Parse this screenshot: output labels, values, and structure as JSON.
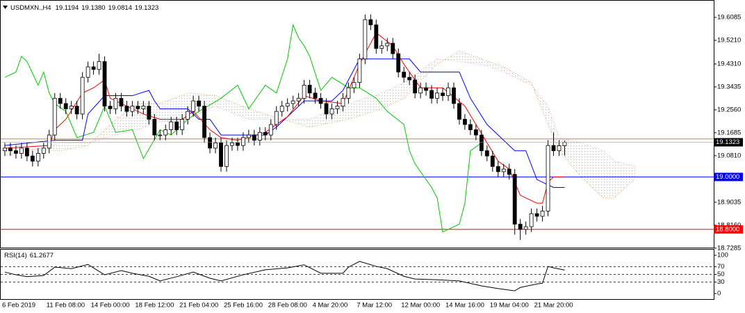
{
  "chart_data": {
    "type": "candlestick",
    "symbol": "USDMXN.,H4",
    "ohlc_value_labels": [
      "19.1194",
      "19.1380",
      "19.0814",
      "19.1323"
    ],
    "categories": [
      "6 Feb 2019",
      null,
      null,
      null,
      null,
      null,
      null,
      null,
      "11 Feb 08:00",
      null,
      null,
      null,
      null,
      null,
      null,
      null,
      "14 Feb 00:00",
      null,
      null,
      null,
      null,
      null,
      null,
      null,
      "18 Feb 12:00",
      null,
      null,
      null,
      null,
      null,
      null,
      null,
      "21 Feb 04:00",
      null,
      null,
      null,
      null,
      null,
      null,
      null,
      "25 Feb 16:00",
      null,
      null,
      null,
      null,
      null,
      null,
      null,
      "28 Feb 08:00",
      null,
      null,
      null,
      null,
      null,
      null,
      null,
      "4 Mar 20:00",
      null,
      null,
      null,
      null,
      null,
      null,
      null,
      "7 Mar 12:00",
      null,
      null,
      null,
      null,
      null,
      null,
      null,
      "12 Mar 00:00",
      null,
      null,
      null,
      null,
      null,
      null,
      null,
      "14 Mar 16:00",
      null,
      null,
      null,
      null,
      null,
      null,
      null,
      "19 Mar 04:00",
      null,
      null,
      null,
      null,
      null,
      null,
      null,
      "21 Mar 20:00",
      null,
      null,
      null,
      null,
      null
    ],
    "open": [
      19.1,
      19.11,
      19.1,
      19.09,
      19.11,
      19.08,
      19.06,
      19.09,
      19.11,
      19.16,
      19.3,
      19.28,
      19.26,
      19.27,
      19.24,
      19.38,
      19.42,
      19.41,
      19.44,
      19.27,
      19.26,
      19.3,
      19.27,
      19.25,
      19.27,
      19.26,
      19.27,
      19.22,
      19.16,
      19.16,
      19.18,
      19.21,
      19.18,
      19.22,
      19.25,
      19.29,
      19.27,
      19.15,
      19.11,
      19.13,
      19.04,
      19.12,
      19.13,
      19.12,
      19.15,
      19.16,
      19.14,
      19.17,
      19.16,
      19.2,
      19.25,
      19.27,
      19.28,
      19.29,
      19.3,
      19.35,
      19.32,
      19.3,
      19.28,
      19.24,
      19.26,
      19.27,
      19.3,
      19.34,
      19.36,
      19.45,
      19.6,
      19.58,
      19.49,
      19.5,
      19.51,
      19.47,
      19.4,
      19.38,
      19.37,
      19.32,
      19.34,
      19.33,
      19.3,
      19.32,
      19.31,
      19.34,
      19.28,
      19.22,
      19.2,
      19.18,
      19.16,
      19.1,
      19.08,
      19.04,
      19.02,
      19.03,
      19.01,
      18.82,
      18.8,
      18.81,
      18.86,
      18.85,
      18.87,
      19.12,
      19.1,
      19.1194
    ],
    "high": [
      19.13,
      19.13,
      19.12,
      19.13,
      19.13,
      19.1,
      19.11,
      19.13,
      19.18,
      19.32,
      19.32,
      19.3,
      19.29,
      19.29,
      19.4,
      19.44,
      19.44,
      19.47,
      19.46,
      19.29,
      19.32,
      19.32,
      19.29,
      19.29,
      19.29,
      19.29,
      19.29,
      19.24,
      19.18,
      19.2,
      19.23,
      19.23,
      19.24,
      19.27,
      19.31,
      19.31,
      19.29,
      19.17,
      19.15,
      19.15,
      19.14,
      19.15,
      19.15,
      19.17,
      19.18,
      19.18,
      19.19,
      19.19,
      19.22,
      19.27,
      19.29,
      19.3,
      19.31,
      19.32,
      19.37,
      19.37,
      19.34,
      19.32,
      19.3,
      19.28,
      19.29,
      19.32,
      19.36,
      19.38,
      19.47,
      19.62,
      19.62,
      19.6,
      19.52,
      19.53,
      19.53,
      19.49,
      19.42,
      19.4,
      19.39,
      19.36,
      19.36,
      19.35,
      19.34,
      19.34,
      19.36,
      19.36,
      19.3,
      19.24,
      19.22,
      19.2,
      19.18,
      19.12,
      19.1,
      19.06,
      19.05,
      19.05,
      19.03,
      18.84,
      18.83,
      18.88,
      18.88,
      18.89,
      19.14,
      19.17,
      19.14,
      19.138
    ],
    "low": [
      19.08,
      19.08,
      19.07,
      19.07,
      19.06,
      19.04,
      19.04,
      19.07,
      19.09,
      19.14,
      19.26,
      19.24,
      19.24,
      19.22,
      19.22,
      19.36,
      19.39,
      19.39,
      19.25,
      19.24,
      19.24,
      19.25,
      19.23,
      19.23,
      19.24,
      19.24,
      19.2,
      19.14,
      19.14,
      19.14,
      19.16,
      19.16,
      19.16,
      19.2,
      19.23,
      19.25,
      19.13,
      19.09,
      19.09,
      19.02,
      19.02,
      19.1,
      19.1,
      19.1,
      19.13,
      19.12,
      19.12,
      19.14,
      19.14,
      19.18,
      19.23,
      19.25,
      19.26,
      19.27,
      19.28,
      19.3,
      19.28,
      19.26,
      19.22,
      19.22,
      19.24,
      19.25,
      19.28,
      19.32,
      19.34,
      19.43,
      19.56,
      19.47,
      19.47,
      19.48,
      19.45,
      19.38,
      19.36,
      19.35,
      19.3,
      19.3,
      19.31,
      19.28,
      19.28,
      19.29,
      19.29,
      19.26,
      19.2,
      19.18,
      19.16,
      19.14,
      19.08,
      19.06,
      19.02,
      19.0,
      19.0,
      18.99,
      18.78,
      18.76,
      18.78,
      18.79,
      18.83,
      18.83,
      18.85,
      19.08,
      19.08,
      19.0814
    ],
    "close": [
      19.11,
      19.1,
      19.09,
      19.11,
      19.08,
      19.06,
      19.09,
      19.11,
      19.16,
      19.3,
      19.28,
      19.26,
      19.27,
      19.24,
      19.38,
      19.42,
      19.41,
      19.44,
      19.27,
      19.26,
      19.3,
      19.27,
      19.25,
      19.27,
      19.26,
      19.27,
      19.22,
      19.16,
      19.16,
      19.18,
      19.21,
      19.18,
      19.22,
      19.25,
      19.29,
      19.27,
      19.15,
      19.11,
      19.13,
      19.04,
      19.12,
      19.13,
      19.12,
      19.15,
      19.16,
      19.14,
      19.17,
      19.16,
      19.2,
      19.25,
      19.27,
      19.28,
      19.29,
      19.3,
      19.35,
      19.32,
      19.3,
      19.28,
      19.24,
      19.26,
      19.27,
      19.3,
      19.34,
      19.36,
      19.45,
      19.6,
      19.58,
      19.49,
      19.5,
      19.51,
      19.47,
      19.4,
      19.38,
      19.37,
      19.32,
      19.34,
      19.33,
      19.3,
      19.32,
      19.31,
      19.34,
      19.28,
      19.22,
      19.2,
      19.18,
      19.16,
      19.1,
      19.08,
      19.04,
      19.02,
      19.03,
      19.01,
      18.82,
      18.8,
      18.81,
      18.86,
      18.85,
      18.87,
      19.12,
      19.1,
      19.1194,
      19.1323
    ],
    "candle_color": "#000000",
    "bull_fill": "#ffffff",
    "xlim": [
      -0.75,
      127.9
    ],
    "ylim": [
      18.7305,
      19.6722
    ],
    "yticks": [
      19.6085,
      {
        "value": 19.521,
        "label": "19.5210"
      },
      {
        "value": 19.431,
        "label": "19.4310"
      },
      19.3435,
      {
        "value": 19.256,
        "label": "19.2560"
      },
      19.1685,
      {
        "value": 19.081,
        "label": "19.0810"
      },
      18.9035,
      {
        "value": 18.816,
        "label": "18.8160"
      },
      18.7285
    ],
    "price_line_color": "#a0a0a0",
    "levels": [
      {
        "value": 19.145,
        "color": "#f07830"
      },
      {
        "value": 19,
        "label": "19.0000",
        "color": "#0000ff"
      },
      {
        "value": 18.8,
        "label": "18.8000",
        "color": "#ff0000"
      }
    ],
    "lines": [
      {
        "color": "#00cc00",
        "x": [
          0,
          2,
          3,
          4,
          6,
          7,
          8,
          9,
          11,
          13,
          16,
          18,
          20,
          23,
          25,
          28,
          30,
          33,
          35,
          39,
          42,
          44,
          47,
          49,
          51,
          52,
          53,
          54,
          55,
          57,
          59,
          62,
          64,
          67,
          69,
          72,
          73,
          74,
          77,
          78,
          79,
          82,
          83,
          84,
          86
        ],
        "values": [
          19.38,
          19.4,
          19.46,
          19.44,
          19.35,
          19.4,
          19.32,
          19.28,
          19.25,
          19.15,
          19.17,
          19.27,
          19.17,
          19.18,
          19.07,
          19.18,
          19.16,
          19.22,
          19.25,
          19.3,
          19.35,
          19.26,
          19.35,
          19.32,
          19.45,
          19.58,
          19.53,
          19.5,
          19.46,
          19.33,
          19.38,
          19.34,
          19.34,
          19.3,
          19.25,
          19.2,
          19.1,
          19.05,
          18.96,
          18.92,
          18.79,
          18.82,
          18.9,
          19.1,
          19.13
        ]
      },
      {
        "color": "#0000ff",
        "x": [
          0,
          9,
          14,
          15,
          18,
          23,
          26,
          27,
          28,
          33,
          35,
          37,
          39,
          47,
          49,
          51,
          54,
          59,
          61,
          64,
          73,
          75,
          82,
          84,
          87,
          92,
          94,
          96,
          99,
          101
        ],
        "values": [
          19.12,
          19.14,
          19.14,
          19.24,
          19.31,
          19.31,
          19.33,
          19.29,
          19.26,
          19.26,
          19.22,
          19.22,
          19.16,
          19.16,
          19.19,
          19.23,
          19.29,
          19.29,
          19.33,
          19.45,
          19.45,
          19.4,
          19.4,
          19.3,
          19.2,
          19.1,
          19.1,
          18.99,
          18.96,
          18.96
        ]
      },
      {
        "color": "#ff0000",
        "x": [
          0,
          8,
          9,
          11,
          14,
          16,
          18,
          19,
          21,
          25,
          28,
          32,
          34,
          37,
          39,
          42,
          47,
          51,
          54,
          57,
          61,
          64,
          67,
          70,
          72,
          75,
          79,
          83,
          85,
          89,
          91,
          93,
          96,
          97,
          98,
          99,
          101
        ],
        "values": [
          19.11,
          19.12,
          19.18,
          19.22,
          19.32,
          19.34,
          19.37,
          19.3,
          19.28,
          19.24,
          19.22,
          19.22,
          19.25,
          19.18,
          19.15,
          19.14,
          19.17,
          19.23,
          19.31,
          19.29,
          19.28,
          19.43,
          19.55,
          19.5,
          19.43,
          19.34,
          19.34,
          19.27,
          19.2,
          19.06,
          19.03,
          18.93,
          18.9,
          18.9,
          18.98,
          19.0,
          19.0
        ]
      }
    ],
    "cloud": {
      "x": [
        0,
        10,
        15,
        20,
        24,
        28,
        33,
        38,
        44,
        50,
        55,
        62,
        68,
        72,
        78,
        82,
        86,
        90,
        95,
        98,
        100,
        104,
        108,
        110,
        114
      ],
      "span_a": [
        19.11,
        19.1,
        19.12,
        19.22,
        19.28,
        19.28,
        19.32,
        19.31,
        19.26,
        19.22,
        19.19,
        19.22,
        19.26,
        19.3,
        19.43,
        19.48,
        19.45,
        19.42,
        19.36,
        19.2,
        19.1,
        19.0,
        18.92,
        18.92,
        19.0
      ],
      "span_b": [
        19.08,
        19.13,
        19.13,
        19.16,
        19.18,
        19.21,
        19.22,
        19.27,
        19.22,
        19.22,
        19.22,
        19.28,
        19.32,
        19.36,
        19.45,
        19.44,
        19.43,
        19.4,
        19.35,
        19.27,
        19.15,
        19.13,
        19.1,
        19.06,
        19.04
      ],
      "color_a": "#f0a060",
      "color_b": "#e8a8d0"
    },
    "rsi": {
      "type": "line",
      "title": "RSI(14)",
      "color": "#000000",
      "x": [
        0,
        2,
        4,
        7,
        9,
        12,
        15,
        18,
        21,
        23,
        26,
        28,
        31,
        34,
        37,
        39,
        43,
        47,
        51,
        54,
        57,
        61,
        62,
        64,
        67,
        69,
        72,
        74,
        78,
        82,
        86,
        89,
        92,
        93,
        96,
        97,
        98,
        99,
        101
      ],
      "values": [
        56,
        49,
        44,
        47,
        69,
        65,
        76,
        49,
        60,
        53,
        45,
        33,
        44,
        56,
        40,
        33,
        49,
        62,
        67,
        75,
        53,
        53,
        69,
        84,
        71,
        65,
        45,
        38,
        36,
        33,
        20,
        13,
        7,
        16,
        25,
        27,
        71,
        67,
        61.2677
      ],
      "ylim": [
        -14.5,
        114.5
      ],
      "yticks": [
        100,
        70,
        50,
        30,
        0
      ],
      "levels": [
        70,
        50,
        30
      ]
    }
  }
}
